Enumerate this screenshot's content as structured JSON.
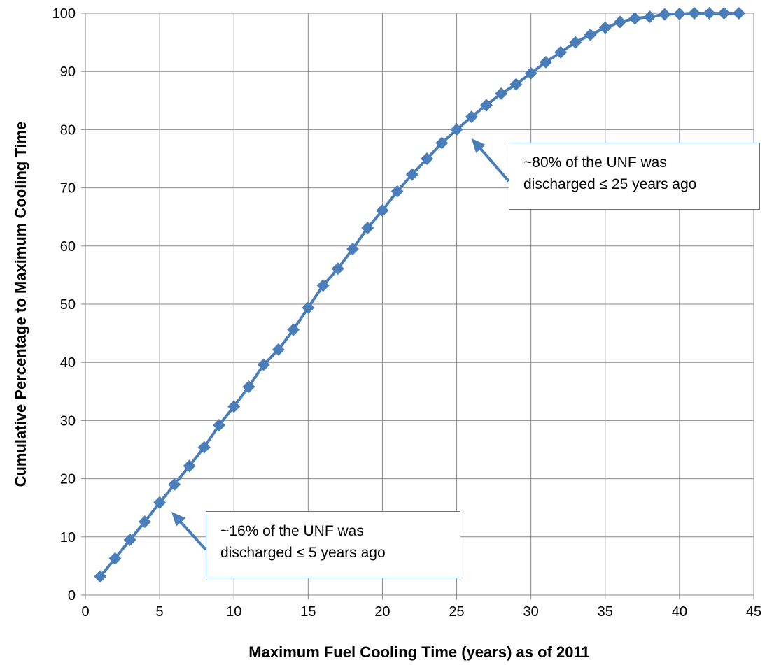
{
  "chart_data": {
    "type": "line",
    "title": "",
    "xlabel": "Maximum Fuel Cooling Time (years) as of 2011",
    "ylabel": "Cumulative Percentage to Maximum Cooling Time",
    "xlim": [
      0,
      45
    ],
    "ylim": [
      0,
      100
    ],
    "xticks": [
      0,
      5,
      10,
      15,
      20,
      25,
      30,
      35,
      40,
      45
    ],
    "yticks": [
      0,
      10,
      20,
      30,
      40,
      50,
      60,
      70,
      80,
      90,
      100
    ],
    "grid": true,
    "legend": "none",
    "series_color": "#4a7ebb",
    "series": [
      {
        "marker": "diamond",
        "x": [
          1,
          2,
          3,
          4,
          5,
          6,
          7,
          8,
          9,
          10,
          11,
          12,
          13,
          14,
          15,
          16,
          17,
          18,
          19,
          20,
          21,
          22,
          23,
          24,
          25,
          26,
          27,
          28,
          29,
          30,
          31,
          32,
          33,
          34,
          35,
          36,
          37,
          38,
          39,
          40,
          41,
          42,
          43,
          44
        ],
        "y": [
          3.2,
          6.3,
          9.5,
          12.6,
          15.9,
          19.0,
          22.2,
          25.4,
          29.2,
          32.4,
          35.8,
          39.6,
          42.2,
          45.6,
          49.4,
          53.2,
          56.1,
          59.5,
          63.1,
          66.1,
          69.4,
          72.3,
          75.0,
          77.7,
          80.0,
          82.2,
          84.2,
          86.2,
          87.8,
          89.7,
          91.6,
          93.3,
          95.0,
          96.3,
          97.5,
          98.5,
          99.1,
          99.4,
          99.8,
          99.9,
          100.0,
          100.0,
          100.0,
          100.0
        ]
      }
    ],
    "annotations": [
      {
        "lines": [
          "~80% of the UNF was",
          "discharged ≤  25 years ago"
        ],
        "points_to": [
          26,
          78.5
        ]
      },
      {
        "lines": [
          "~16% of the UNF was",
          "discharged ≤ 5 years ago"
        ],
        "points_to": [
          5.8,
          14.3
        ]
      }
    ]
  }
}
